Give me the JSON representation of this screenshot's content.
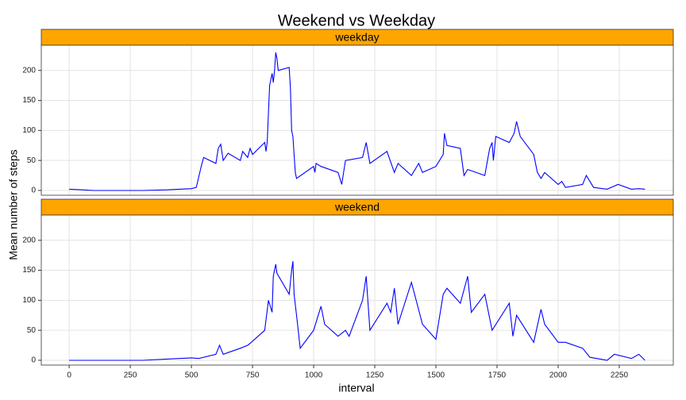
{
  "chart_data": {
    "type": "line",
    "title": "Weekend vs Weekday",
    "x_label": "interval",
    "y_label": "Mean number of steps",
    "xlim": [
      -114,
      2471
    ],
    "ylim": [
      -8,
      242
    ],
    "xticks": [
      0,
      250,
      500,
      750,
      1000,
      1250,
      1500,
      1750,
      2000,
      2250
    ],
    "yticks": [
      0,
      50,
      100,
      150,
      200
    ],
    "grid": true,
    "strip_color": "#ffa500",
    "series": [
      {
        "name": "weekday",
        "color": "#0000ff",
        "x": [
          0,
          55,
          100,
          200,
          300,
          400,
          500,
          520,
          540,
          550,
          600,
          610,
          620,
          630,
          650,
          700,
          710,
          730,
          740,
          750,
          800,
          805,
          810,
          820,
          830,
          835,
          840,
          845,
          850,
          855,
          900,
          905,
          910,
          915,
          920,
          925,
          930,
          1000,
          1005,
          1010,
          1030,
          1100,
          1115,
          1130,
          1200,
          1215,
          1230,
          1300,
          1330,
          1345,
          1400,
          1430,
          1445,
          1500,
          1530,
          1535,
          1545,
          1600,
          1615,
          1630,
          1700,
          1720,
          1730,
          1735,
          1745,
          1800,
          1820,
          1830,
          1845,
          1900,
          1915,
          1930,
          1945,
          2000,
          2015,
          2030,
          2100,
          2115,
          2145,
          2200,
          2245,
          2300,
          2330,
          2355
        ],
        "values": [
          2,
          1,
          0,
          0,
          0,
          1,
          3,
          5,
          40,
          55,
          45,
          70,
          77,
          50,
          62,
          50,
          65,
          55,
          70,
          60,
          80,
          65,
          80,
          175,
          195,
          180,
          200,
          230,
          220,
          200,
          205,
          170,
          100,
          90,
          60,
          30,
          20,
          40,
          30,
          45,
          40,
          30,
          10,
          50,
          55,
          80,
          45,
          65,
          30,
          45,
          25,
          45,
          30,
          40,
          60,
          95,
          75,
          70,
          25,
          35,
          25,
          70,
          80,
          50,
          90,
          80,
          95,
          115,
          90,
          60,
          30,
          20,
          30,
          10,
          15,
          5,
          10,
          25,
          5,
          2,
          10,
          2,
          3,
          2
        ]
      },
      {
        "name": "weekend",
        "color": "#0000ff",
        "x": [
          0,
          100,
          200,
          300,
          400,
          500,
          530,
          600,
          615,
          630,
          700,
          730,
          745,
          800,
          815,
          830,
          835,
          845,
          850,
          900,
          910,
          915,
          920,
          930,
          945,
          1000,
          1030,
          1045,
          1100,
          1130,
          1145,
          1200,
          1215,
          1230,
          1300,
          1315,
          1330,
          1345,
          1400,
          1445,
          1500,
          1530,
          1545,
          1600,
          1630,
          1645,
          1700,
          1730,
          1800,
          1815,
          1830,
          1900,
          1930,
          1945,
          2000,
          2030,
          2100,
          2130,
          2200,
          2230,
          2300,
          2330,
          2355
        ],
        "values": [
          0,
          0,
          0,
          0,
          2,
          4,
          3,
          10,
          25,
          10,
          20,
          25,
          30,
          50,
          100,
          80,
          140,
          160,
          145,
          110,
          150,
          165,
          110,
          75,
          20,
          50,
          90,
          60,
          40,
          50,
          40,
          100,
          140,
          50,
          95,
          80,
          120,
          60,
          130,
          60,
          35,
          110,
          120,
          95,
          140,
          80,
          110,
          50,
          95,
          40,
          75,
          30,
          85,
          60,
          30,
          30,
          20,
          5,
          0,
          10,
          3,
          10,
          0
        ]
      }
    ]
  }
}
